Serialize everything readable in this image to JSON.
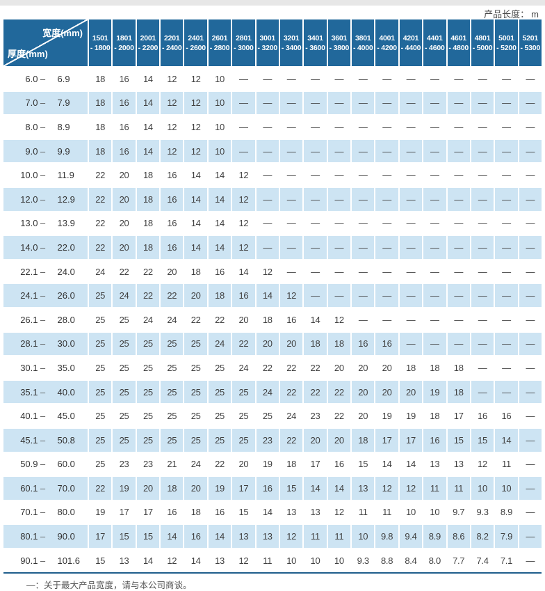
{
  "page": {
    "product_length_label": "产品长度：",
    "product_length_unit": "m",
    "footnote": "—：关于最大产品宽度，请与本公司商谈。"
  },
  "colors": {
    "header_blue": "#21689b",
    "row_alt_blue": "#cde4f3",
    "top_strip_gray": "#e7e7e7",
    "bottom_line_blue": "#1f5e8c"
  },
  "table": {
    "corner": {
      "width_label": "宽度(mm)",
      "thickness_label": "厚度(mm)"
    },
    "range_dash": "–",
    "width_columns": [
      [
        "1501",
        "- 1800"
      ],
      [
        "1801",
        "- 2000"
      ],
      [
        "2001",
        "- 2200"
      ],
      [
        "2201",
        "- 2400"
      ],
      [
        "2401",
        "- 2600"
      ],
      [
        "2601",
        "- 2800"
      ],
      [
        "2801",
        "- 3000"
      ],
      [
        "3001",
        "- 3200"
      ],
      [
        "3201",
        "- 3400"
      ],
      [
        "3401",
        "- 3600"
      ],
      [
        "3601",
        "- 3800"
      ],
      [
        "3801",
        "- 4000"
      ],
      [
        "4001",
        "- 4200"
      ],
      [
        "4201",
        "- 4400"
      ],
      [
        "4401",
        "- 4600"
      ],
      [
        "4601",
        "- 4800"
      ],
      [
        "4801",
        "- 5000"
      ],
      [
        "5001",
        "- 5200"
      ],
      [
        "5201",
        "- 5300"
      ]
    ],
    "rows": [
      {
        "from": "6.0",
        "to": "6.9",
        "values": [
          "18",
          "16",
          "14",
          "12",
          "12",
          "10",
          "—",
          "—",
          "—",
          "—",
          "—",
          "—",
          "—",
          "—",
          "—",
          "—",
          "—",
          "—",
          "—"
        ]
      },
      {
        "from": "7.0",
        "to": "7.9",
        "values": [
          "18",
          "16",
          "14",
          "12",
          "12",
          "10",
          "—",
          "—",
          "—",
          "—",
          "—",
          "—",
          "—",
          "—",
          "—",
          "—",
          "—",
          "—",
          "—"
        ]
      },
      {
        "from": "8.0",
        "to": "8.9",
        "values": [
          "18",
          "16",
          "14",
          "12",
          "12",
          "10",
          "—",
          "—",
          "—",
          "—",
          "—",
          "—",
          "—",
          "—",
          "—",
          "—",
          "—",
          "—",
          "—"
        ]
      },
      {
        "from": "9.0",
        "to": "9.9",
        "values": [
          "18",
          "16",
          "14",
          "12",
          "12",
          "10",
          "—",
          "—",
          "—",
          "—",
          "—",
          "—",
          "—",
          "—",
          "—",
          "—",
          "—",
          "—",
          "—"
        ]
      },
      {
        "from": "10.0",
        "to": "11.9",
        "values": [
          "22",
          "20",
          "18",
          "16",
          "14",
          "14",
          "12",
          "—",
          "—",
          "—",
          "—",
          "—",
          "—",
          "—",
          "—",
          "—",
          "—",
          "—",
          "—"
        ]
      },
      {
        "from": "12.0",
        "to": "12.9",
        "values": [
          "22",
          "20",
          "18",
          "16",
          "14",
          "14",
          "12",
          "—",
          "—",
          "—",
          "—",
          "—",
          "—",
          "—",
          "—",
          "—",
          "—",
          "—",
          "—"
        ]
      },
      {
        "from": "13.0",
        "to": "13.9",
        "values": [
          "22",
          "20",
          "18",
          "16",
          "14",
          "14",
          "12",
          "—",
          "—",
          "—",
          "—",
          "—",
          "—",
          "—",
          "—",
          "—",
          "—",
          "—",
          "—"
        ]
      },
      {
        "from": "14.0",
        "to": "22.0",
        "values": [
          "22",
          "20",
          "18",
          "16",
          "14",
          "14",
          "12",
          "—",
          "—",
          "—",
          "—",
          "—",
          "—",
          "—",
          "—",
          "—",
          "—",
          "—",
          "—"
        ]
      },
      {
        "from": "22.1",
        "to": "24.0",
        "values": [
          "24",
          "22",
          "22",
          "20",
          "18",
          "16",
          "14",
          "12",
          "—",
          "—",
          "—",
          "—",
          "—",
          "—",
          "—",
          "—",
          "—",
          "—",
          "—"
        ]
      },
      {
        "from": "24.1",
        "to": "26.0",
        "values": [
          "25",
          "24",
          "22",
          "22",
          "20",
          "18",
          "16",
          "14",
          "12",
          "—",
          "—",
          "—",
          "—",
          "—",
          "—",
          "—",
          "—",
          "—",
          "—"
        ]
      },
      {
        "from": "26.1",
        "to": "28.0",
        "values": [
          "25",
          "25",
          "24",
          "24",
          "22",
          "22",
          "20",
          "18",
          "16",
          "14",
          "12",
          "—",
          "—",
          "—",
          "—",
          "—",
          "—",
          "—",
          "—"
        ]
      },
      {
        "from": "28.1",
        "to": "30.0",
        "values": [
          "25",
          "25",
          "25",
          "25",
          "25",
          "24",
          "22",
          "20",
          "20",
          "18",
          "18",
          "16",
          "16",
          "—",
          "—",
          "—",
          "—",
          "—",
          "—"
        ]
      },
      {
        "from": "30.1",
        "to": "35.0",
        "values": [
          "25",
          "25",
          "25",
          "25",
          "25",
          "25",
          "24",
          "22",
          "22",
          "22",
          "20",
          "20",
          "20",
          "18",
          "18",
          "18",
          "—",
          "—",
          "—"
        ]
      },
      {
        "from": "35.1",
        "to": "40.0",
        "values": [
          "25",
          "25",
          "25",
          "25",
          "25",
          "25",
          "25",
          "24",
          "22",
          "22",
          "22",
          "20",
          "20",
          "20",
          "19",
          "18",
          "—",
          "—",
          "—"
        ]
      },
      {
        "from": "40.1",
        "to": "45.0",
        "values": [
          "25",
          "25",
          "25",
          "25",
          "25",
          "25",
          "25",
          "25",
          "24",
          "23",
          "22",
          "20",
          "19",
          "19",
          "18",
          "17",
          "16",
          "16",
          "—"
        ]
      },
      {
        "from": "45.1",
        "to": "50.8",
        "values": [
          "25",
          "25",
          "25",
          "25",
          "25",
          "25",
          "25",
          "23",
          "22",
          "20",
          "20",
          "18",
          "17",
          "17",
          "16",
          "15",
          "15",
          "14",
          "—"
        ]
      },
      {
        "from": "50.9",
        "to": "60.0",
        "values": [
          "25",
          "23",
          "23",
          "21",
          "24",
          "22",
          "20",
          "19",
          "18",
          "17",
          "16",
          "15",
          "14",
          "14",
          "13",
          "13",
          "12",
          "11",
          "—"
        ]
      },
      {
        "from": "60.1",
        "to": "70.0",
        "values": [
          "22",
          "19",
          "20",
          "18",
          "20",
          "19",
          "17",
          "16",
          "15",
          "14",
          "14",
          "13",
          "12",
          "12",
          "11",
          "11",
          "10",
          "10",
          "—"
        ]
      },
      {
        "from": "70.1",
        "to": "80.0",
        "values": [
          "19",
          "17",
          "17",
          "16",
          "18",
          "16",
          "15",
          "14",
          "13",
          "13",
          "12",
          "11",
          "11",
          "10",
          "10",
          "9.7",
          "9.3",
          "8.9",
          "—"
        ]
      },
      {
        "from": "80.1",
        "to": "90.0",
        "values": [
          "17",
          "15",
          "15",
          "14",
          "16",
          "14",
          "13",
          "13",
          "12",
          "11",
          "11",
          "10",
          "9.8",
          "9.4",
          "8.9",
          "8.6",
          "8.2",
          "7.9",
          "—"
        ]
      },
      {
        "from": "90.1",
        "to": "101.6",
        "values": [
          "15",
          "13",
          "14",
          "12",
          "14",
          "13",
          "12",
          "11",
          "10",
          "10",
          "10",
          "9.3",
          "8.8",
          "8.4",
          "8.0",
          "7.7",
          "7.4",
          "7.1",
          "—"
        ]
      }
    ]
  }
}
